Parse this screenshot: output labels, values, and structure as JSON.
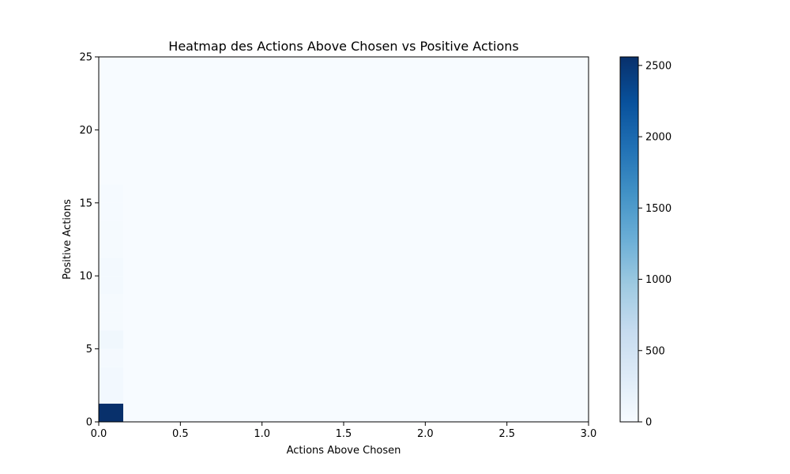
{
  "chart_data": {
    "type": "heatmap",
    "title": "Heatmap des Actions Above Chosen vs Positive Actions",
    "xlabel": "Actions Above Chosen",
    "ylabel": "Positive Actions",
    "xlim": [
      0,
      3
    ],
    "ylim": [
      0,
      25
    ],
    "x_ticks": [
      0.0,
      0.5,
      1.0,
      1.5,
      2.0,
      2.5,
      3.0
    ],
    "x_tick_labels": [
      "0.0",
      "0.5",
      "1.0",
      "1.5",
      "2.0",
      "2.5",
      "3.0"
    ],
    "y_ticks": [
      0,
      5,
      10,
      15,
      20,
      25
    ],
    "y_tick_labels": [
      "0",
      "5",
      "10",
      "15",
      "20",
      "25"
    ],
    "x_bin_width": 0.15,
    "y_bin_height": 1.25,
    "colormap": "Blues",
    "colorbar": {
      "vmin": 0,
      "vmax": 2560,
      "ticks": [
        0,
        500,
        1000,
        1500,
        2000,
        2500
      ],
      "tick_labels": [
        "0",
        "500",
        "1000",
        "1500",
        "2000",
        "2500"
      ]
    },
    "cells": [
      {
        "x": 0.0,
        "y": 0.0,
        "value": 2560
      },
      {
        "x": 0.0,
        "y": 1.25,
        "value": 60
      },
      {
        "x": 0.0,
        "y": 2.5,
        "value": 60
      },
      {
        "x": 0.0,
        "y": 3.75,
        "value": 40
      },
      {
        "x": 0.0,
        "y": 5.0,
        "value": 90
      },
      {
        "x": 0.0,
        "y": 6.25,
        "value": 30
      },
      {
        "x": 0.0,
        "y": 7.5,
        "value": 30
      },
      {
        "x": 0.0,
        "y": 8.75,
        "value": 45
      },
      {
        "x": 0.0,
        "y": 10.0,
        "value": 45
      },
      {
        "x": 0.0,
        "y": 11.25,
        "value": 30
      },
      {
        "x": 0.0,
        "y": 12.5,
        "value": 25
      },
      {
        "x": 0.0,
        "y": 13.75,
        "value": 20
      },
      {
        "x": 0.0,
        "y": 15.0,
        "value": 20
      }
    ],
    "grid": false
  }
}
